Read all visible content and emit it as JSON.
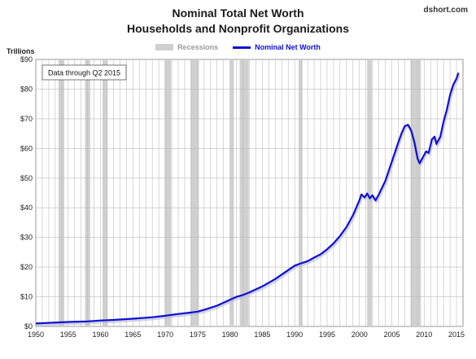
{
  "header": {
    "title_line1": "Nominal Total Net Worth",
    "title_line2": "Households and Nonprofit Organizations",
    "source": "dshort.com",
    "units_label": "Trillions"
  },
  "colors": {
    "line": "#1010d0",
    "recession": "#d0d0d0",
    "grid": "#bdbdbd"
  },
  "chart_data": {
    "type": "line",
    "annotation": "Data through Q2 2015",
    "legend": [
      "Recessions",
      "Nominal Net Worth"
    ],
    "legend_position": "top-center",
    "grid": true,
    "xlim": [
      1950,
      2016
    ],
    "ylim": [
      0,
      90
    ],
    "x_ticks": [
      1950,
      1955,
      1960,
      1965,
      1970,
      1975,
      1980,
      1985,
      1990,
      1995,
      2000,
      2005,
      2010,
      2015
    ],
    "y_ticks": [
      0,
      10,
      20,
      30,
      40,
      50,
      60,
      70,
      80,
      90
    ],
    "y_tick_labels": [
      "$0",
      "$10",
      "$20",
      "$30",
      "$40",
      "$50",
      "$60",
      "$70",
      "$80",
      "$90"
    ],
    "recessions": [
      [
        1953.5,
        1954.4
      ],
      [
        1957.6,
        1958.4
      ],
      [
        1960.3,
        1961.1
      ],
      [
        1969.9,
        1970.9
      ],
      [
        1973.9,
        1975.2
      ],
      [
        1980.0,
        1980.6
      ],
      [
        1981.5,
        1982.9
      ],
      [
        1990.6,
        1991.2
      ],
      [
        2001.2,
        2001.9
      ],
      [
        2007.9,
        2009.5
      ]
    ],
    "series": [
      {
        "name": "Nominal Net Worth",
        "points": [
          [
            1950,
            1.0
          ],
          [
            1952,
            1.2
          ],
          [
            1955,
            1.5
          ],
          [
            1958,
            1.7
          ],
          [
            1960,
            2.0
          ],
          [
            1962,
            2.2
          ],
          [
            1965,
            2.6
          ],
          [
            1968,
            3.1
          ],
          [
            1970,
            3.6
          ],
          [
            1972,
            4.2
          ],
          [
            1974,
            4.7
          ],
          [
            1975,
            5.0
          ],
          [
            1976,
            5.6
          ],
          [
            1978,
            7.0
          ],
          [
            1980,
            9.0
          ],
          [
            1981,
            10.0
          ],
          [
            1982,
            10.6
          ],
          [
            1983,
            11.5
          ],
          [
            1985,
            13.5
          ],
          [
            1987,
            16.0
          ],
          [
            1989,
            19.0
          ],
          [
            1990,
            20.5
          ],
          [
            1991,
            21.3
          ],
          [
            1992,
            22.0
          ],
          [
            1993,
            23.2
          ],
          [
            1994,
            24.3
          ],
          [
            1995,
            26.0
          ],
          [
            1996,
            28.0
          ],
          [
            1997,
            30.5
          ],
          [
            1998,
            33.5
          ],
          [
            1999,
            37.5
          ],
          [
            2000,
            42.5
          ],
          [
            2000.3,
            44.5
          ],
          [
            2000.8,
            43.5
          ],
          [
            2001.2,
            44.8
          ],
          [
            2001.6,
            43.2
          ],
          [
            2002.0,
            44.2
          ],
          [
            2002.5,
            42.5
          ],
          [
            2003.0,
            44.5
          ],
          [
            2004.0,
            49.0
          ],
          [
            2005.0,
            55.5
          ],
          [
            2006.0,
            62.0
          ],
          [
            2006.5,
            65.0
          ],
          [
            2007.0,
            67.5
          ],
          [
            2007.5,
            68.0
          ],
          [
            2008.0,
            66.0
          ],
          [
            2008.5,
            62.0
          ],
          [
            2009.0,
            56.5
          ],
          [
            2009.3,
            55.0
          ],
          [
            2009.8,
            57.0
          ],
          [
            2010.3,
            59.0
          ],
          [
            2010.7,
            58.5
          ],
          [
            2011.2,
            63.0
          ],
          [
            2011.6,
            64.0
          ],
          [
            2011.9,
            61.5
          ],
          [
            2012.5,
            64.0
          ],
          [
            2013.0,
            69.0
          ],
          [
            2013.5,
            73.0
          ],
          [
            2014.0,
            78.0
          ],
          [
            2014.5,
            81.5
          ],
          [
            2015.0,
            83.5
          ],
          [
            2015.3,
            85.5
          ]
        ]
      }
    ]
  }
}
